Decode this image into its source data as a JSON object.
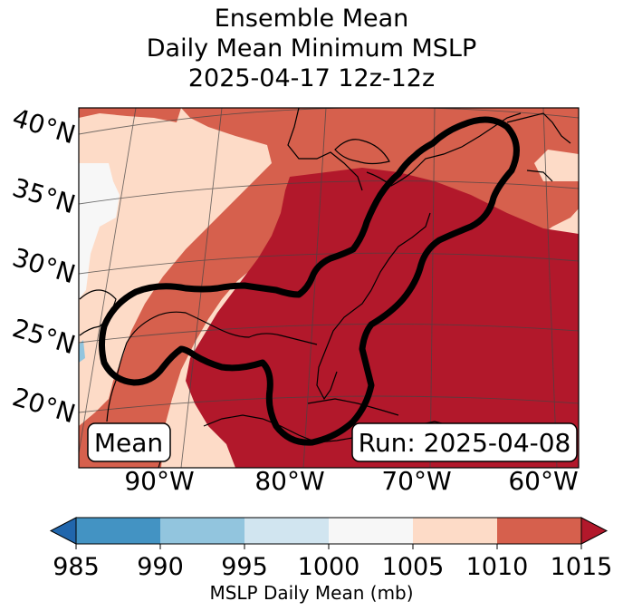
{
  "title": {
    "line1": "Ensemble Mean",
    "line2": "Daily Mean Minimum MSLP",
    "line3": "2025-04-17 12z-12z"
  },
  "map": {
    "lat_labels": [
      "40°N",
      "35°N",
      "30°N",
      "25°N",
      "20°N"
    ],
    "lon_labels": [
      "90°W",
      "80°W",
      "70°W",
      "60°W"
    ],
    "mean_label": "Mean",
    "run_label": "Run: 2025-04-08"
  },
  "colorbar": {
    "ticks": [
      "985",
      "990",
      "995",
      "1000",
      "1005",
      "1010",
      "1015"
    ],
    "label": "MSLP Daily Mean (mb)",
    "colors": {
      "below": "#2166ac",
      "b985_990": "#4393c3",
      "b990_995": "#92c5de",
      "b995_1000": "#d1e5f0",
      "b1000_1005": "#f7f7f7",
      "b1005_1010": "#fddbc7",
      "b1010_1015": "#d6604d",
      "above": "#b2182b"
    }
  },
  "icons": {
    "contour": "probability-contour-outline"
  }
}
